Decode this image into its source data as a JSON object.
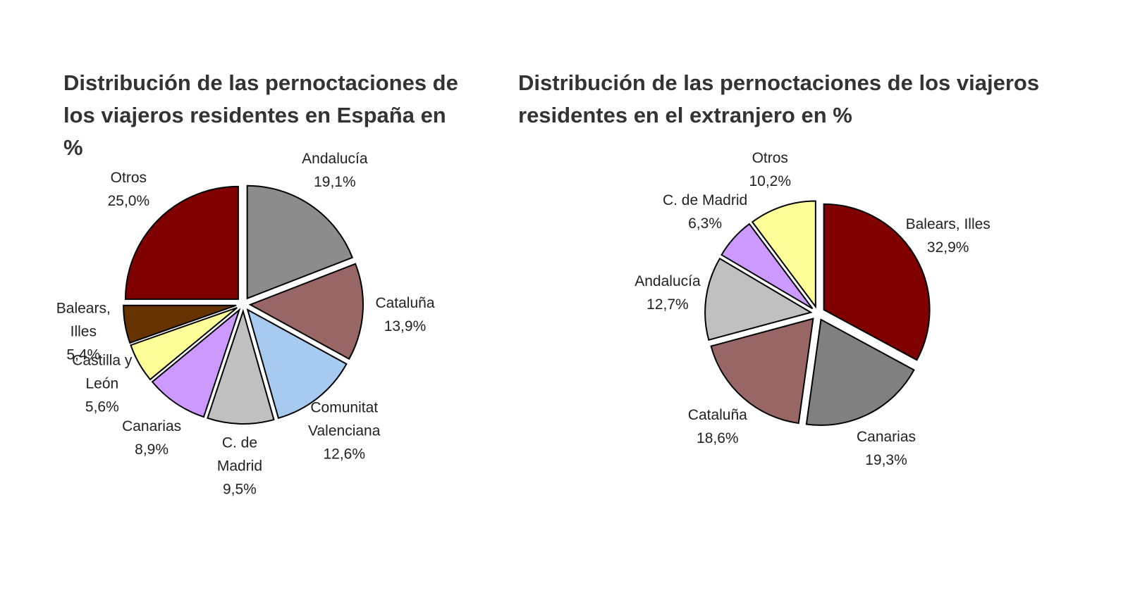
{
  "chart_data": [
    {
      "type": "pie",
      "title": "Distribución de las pernoctaciones de los viajeros residentes en España en %",
      "categories": [
        "Andalucía",
        "Cataluña",
        "Comunitat\nValenciana",
        "C. de\nMadrid",
        "Canarias",
        "Castilla y\nLeón",
        "Balears,\nIlles",
        "Otros"
      ],
      "values": [
        19.1,
        13.9,
        12.6,
        9.5,
        8.9,
        5.6,
        5.4,
        25.0
      ],
      "value_labels": [
        "19,1%",
        "13,9%",
        "12,6%",
        "9,5%",
        "8,9%",
        "5,6%",
        "5,4%",
        "25,0%"
      ],
      "colors": [
        "#8c8c8c",
        "#996666",
        "#a6caf0",
        "#c0c0c0",
        "#cc99ff",
        "#ffff99",
        "#663300",
        "#800000"
      ]
    },
    {
      "type": "pie",
      "title": "Distribución de las pernoctaciones de los viajeros residentes en el extranjero en %",
      "categories": [
        "Balears, Illes",
        "Canarias",
        "Cataluña",
        "Andalucía",
        "C. de Madrid",
        "Otros"
      ],
      "values": [
        32.9,
        19.3,
        18.6,
        12.7,
        6.3,
        10.2
      ],
      "value_labels": [
        "32,9%",
        "19,3%",
        "18,6%",
        "12,7%",
        "6,3%",
        "10,2%"
      ],
      "colors": [
        "#800000",
        "#808080",
        "#996666",
        "#c0c0c0",
        "#cc99ff",
        "#ffff99"
      ]
    }
  ]
}
